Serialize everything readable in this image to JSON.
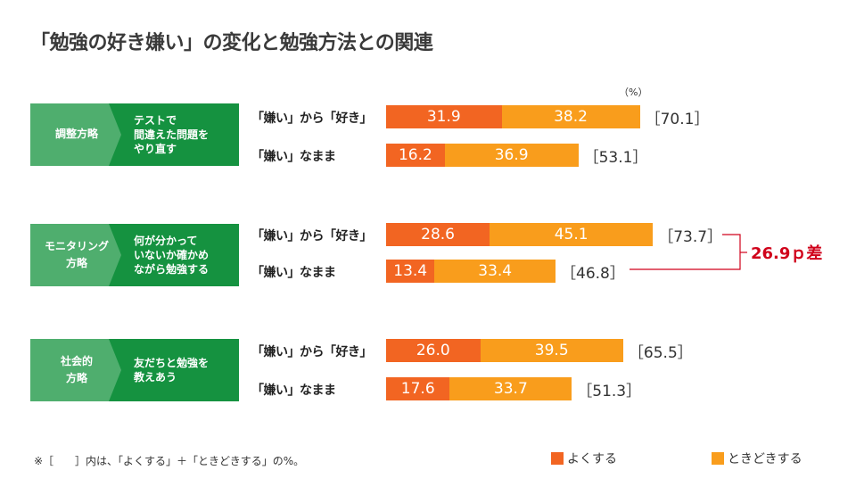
{
  "colors": {
    "yoku": "#f26522",
    "tokidoki": "#f99d1c",
    "tag": "#4fae6e",
    "desc": "#159240",
    "diff": "#d0021b"
  },
  "title": "「勉強の好き嫌い」の変化と勉強方法との関連",
  "unit": "（%）",
  "strategies": [
    {
      "tag": "調整方略",
      "desc": "テストで\n間違えた問題を\nやり直す"
    },
    {
      "tag": "モニタリング\n方略",
      "desc": "何が分かって\nいないか確かめ\nながら勉強する"
    },
    {
      "tag": "社会的\n方略",
      "desc": "友だちと勉強を\n教えあう"
    }
  ],
  "annotation": {
    "text": "26.9ｐ差"
  },
  "footnote": "※［　　］内は、「よくする」＋「ときどきする」の%。",
  "chart_data": {
    "type": "bar",
    "orientation": "horizontal",
    "stacked": true,
    "categories": [
      "「嫌い」から「好き」",
      "「嫌い」なまま",
      "「嫌い」から「好き」",
      "「嫌い」なまま",
      "「嫌い」から「好き」",
      "「嫌い」なまま"
    ],
    "series": [
      {
        "name": "よくする",
        "values": [
          31.9,
          16.2,
          28.6,
          13.4,
          26.0,
          17.6
        ]
      },
      {
        "name": "ときどきする",
        "values": [
          38.2,
          36.9,
          45.1,
          33.4,
          39.5,
          33.7
        ]
      }
    ],
    "totals": [
      "［70.1］",
      "［53.1］",
      "［73.7］",
      "［46.8］",
      "［65.5］",
      "［51.3］"
    ],
    "value_labels": {
      "よくする": [
        "31.9",
        "16.2",
        "28.6",
        "13.4",
        "26.0",
        "17.6"
      ],
      "ときどきする": [
        "38.2",
        "36.9",
        "45.1",
        "33.4",
        "39.5",
        "33.7"
      ]
    },
    "xlim": [
      0,
      80
    ],
    "legend": "bottom-right"
  }
}
